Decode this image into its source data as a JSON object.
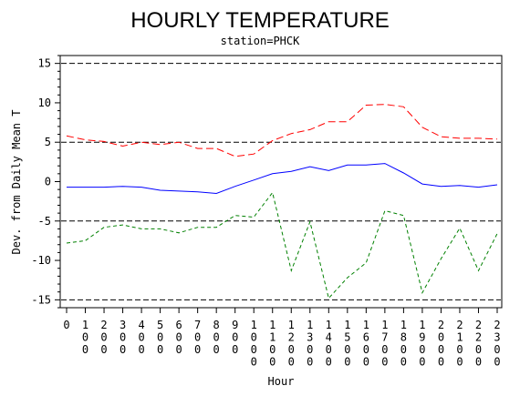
{
  "chart_data": {
    "type": "line",
    "title": "HOURLY TEMPERATURE",
    "subtitle": "station=PHCK",
    "xlabel": "Hour",
    "ylabel": "Dev. from Daily Mean T",
    "x": [
      0,
      1,
      2,
      3,
      4,
      5,
      6,
      7,
      8,
      9,
      10,
      11,
      12,
      13,
      14,
      15,
      16,
      17,
      18,
      19,
      20,
      21,
      22,
      23
    ],
    "x_tick_labels": [
      "0",
      "100",
      "200",
      "300",
      "400",
      "500",
      "600",
      "700",
      "800",
      "900",
      "1000",
      "1100",
      "1200",
      "1300",
      "1400",
      "1500",
      "1600",
      "1700",
      "1800",
      "1900",
      "2000",
      "2100",
      "2200",
      "2300"
    ],
    "xlim": [
      0,
      23
    ],
    "ylim": [
      -16,
      16
    ],
    "y_ticks": [
      -15,
      -10,
      -5,
      0,
      5,
      10,
      15
    ],
    "y_tick_labels": [
      "-15",
      "-10",
      "-5",
      "0",
      "5",
      "10",
      "15"
    ],
    "reference_lines": [
      15,
      5,
      -5,
      -15
    ],
    "grid": false,
    "legend": "none",
    "series": [
      {
        "color": "#ff0000",
        "dash": "long-dash",
        "values": [
          5.8,
          5.3,
          5.1,
          4.5,
          5.0,
          4.7,
          5.0,
          4.2,
          4.2,
          3.2,
          3.5,
          5.2,
          6.1,
          6.6,
          7.6,
          7.6,
          9.7,
          9.8,
          9.5,
          6.9,
          5.7,
          5.5,
          5.5,
          5.4
        ]
      },
      {
        "color": "#0000ff",
        "dash": "solid",
        "values": [
          -0.7,
          -0.7,
          -0.7,
          -0.6,
          -0.7,
          -1.1,
          -1.2,
          -1.3,
          -1.5,
          -0.6,
          0.2,
          1.0,
          1.3,
          1.9,
          1.4,
          2.1,
          2.1,
          2.3,
          1.1,
          -0.3,
          -0.6,
          -0.5,
          -0.7,
          -0.4
        ]
      },
      {
        "color": "#008000",
        "dash": "short-dash",
        "values": [
          -7.8,
          -7.5,
          -5.8,
          -5.5,
          -6.0,
          -6.0,
          -6.5,
          -5.8,
          -5.8,
          -4.3,
          -4.5,
          -1.4,
          -11.3,
          -5.1,
          -14.8,
          -12.2,
          -10.3,
          -3.7,
          -4.3,
          -14.1,
          -9.8,
          -5.9,
          -11.3,
          -6.6
        ]
      }
    ]
  }
}
